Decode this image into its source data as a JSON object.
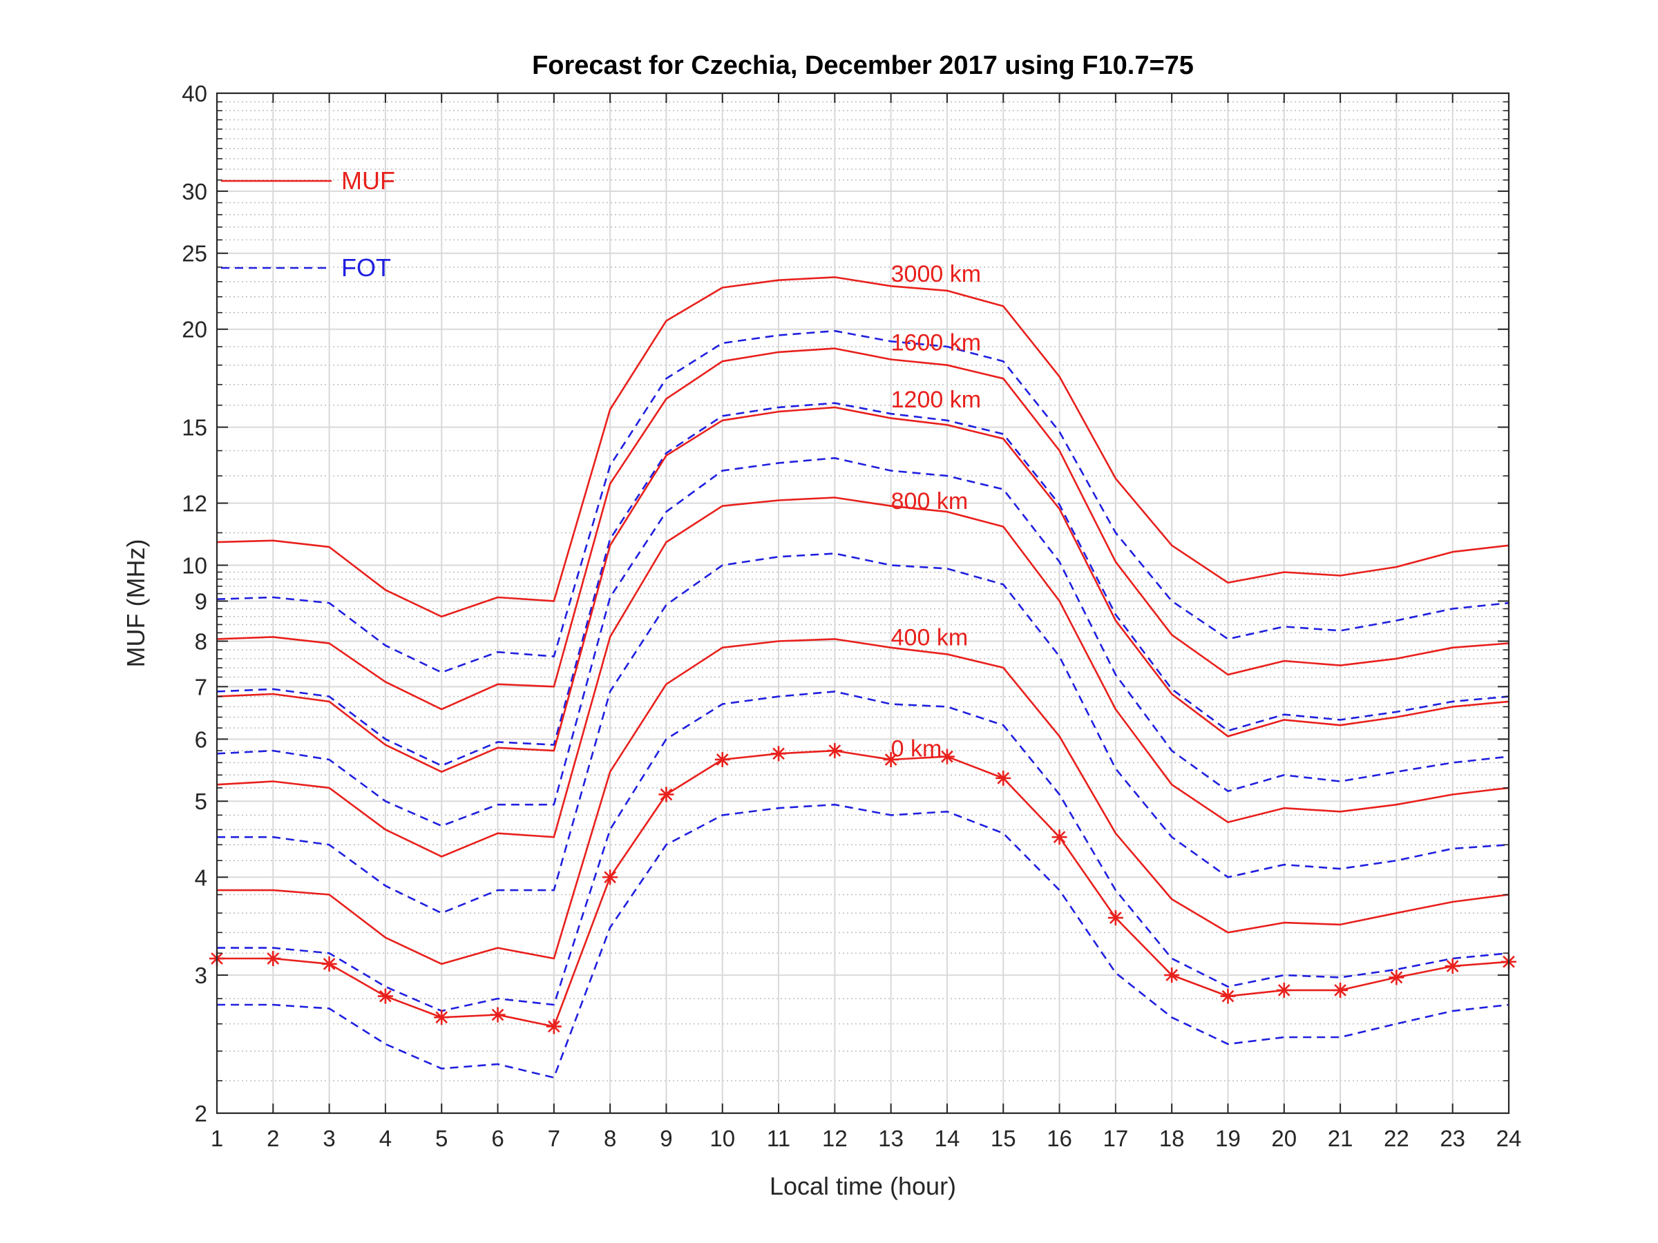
{
  "chart_data": {
    "type": "line",
    "title": "Forecast for Czechia, December 2017 using F10.7=75",
    "xlabel": "Local time (hour)",
    "ylabel": "MUF (MHz)",
    "xlim": [
      1,
      24
    ],
    "ylim": [
      2,
      40
    ],
    "yscale": "log",
    "x": [
      1,
      2,
      3,
      4,
      5,
      6,
      7,
      8,
      9,
      10,
      11,
      12,
      13,
      14,
      15,
      16,
      17,
      18,
      19,
      20,
      21,
      22,
      23,
      24
    ],
    "x_ticks": [
      "1",
      "2",
      "3",
      "4",
      "5",
      "6",
      "7",
      "8",
      "9",
      "10",
      "11",
      "12",
      "13",
      "14",
      "15",
      "16",
      "17",
      "18",
      "19",
      "20",
      "21",
      "22",
      "23",
      "24"
    ],
    "y_ticks": [
      {
        "value": 2,
        "label": "2"
      },
      {
        "value": 3,
        "label": "3"
      },
      {
        "value": 4,
        "label": "4"
      },
      {
        "value": 5,
        "label": "5"
      },
      {
        "value": 6,
        "label": "6"
      },
      {
        "value": 7,
        "label": "7"
      },
      {
        "value": 8,
        "label": "8"
      },
      {
        "value": 9,
        "label": "9"
      },
      {
        "value": 10,
        "label": "10"
      },
      {
        "value": 12,
        "label": "12"
      },
      {
        "value": 15,
        "label": "15"
      },
      {
        "value": 20,
        "label": "20"
      },
      {
        "value": 25,
        "label": "25"
      },
      {
        "value": 30,
        "label": "30"
      },
      {
        "value": 40,
        "label": "40"
      }
    ],
    "grid": true,
    "legend": {
      "placement": "top-left",
      "entries": [
        {
          "label": "MUF",
          "style": "solid",
          "color": "#e8201c"
        },
        {
          "label": "FOT",
          "style": "dashed",
          "color": "#1f1fe0"
        }
      ]
    },
    "colors": {
      "muf": "#e8201c",
      "fot": "#1f1fe0"
    },
    "curve_labels": [
      {
        "text": "3000 km",
        "x": 13,
        "y": 23
      },
      {
        "text": "1600 km",
        "x": 13,
        "y": 18.8
      },
      {
        "text": "1200 km",
        "x": 13,
        "y": 15.9
      },
      {
        "text": "800 km",
        "x": 13,
        "y": 11.8
      },
      {
        "text": "400 km",
        "x": 13,
        "y": 7.9
      },
      {
        "text": "0 km",
        "x": 13,
        "y": 5.7
      }
    ],
    "series": [
      {
        "distance": "3000 km",
        "kind": "MUF",
        "markers": false,
        "values": [
          10.7,
          10.75,
          10.55,
          9.3,
          8.6,
          9.1,
          9.0,
          15.8,
          20.5,
          22.6,
          23.1,
          23.3,
          22.7,
          22.4,
          21.4,
          17.4,
          12.9,
          10.6,
          9.5,
          9.8,
          9.7,
          9.95,
          10.4,
          10.6
        ]
      },
      {
        "distance": "3000 km",
        "kind": "FOT",
        "markers": false,
        "values": [
          9.05,
          9.1,
          8.95,
          7.9,
          7.3,
          7.75,
          7.65,
          13.4,
          17.3,
          19.2,
          19.65,
          19.9,
          19.3,
          19.0,
          18.2,
          14.8,
          11.0,
          9.0,
          8.05,
          8.35,
          8.25,
          8.5,
          8.8,
          8.95
        ]
      },
      {
        "distance": "1600 km",
        "kind": "MUF",
        "markers": false,
        "values": [
          8.05,
          8.1,
          7.95,
          7.1,
          6.55,
          7.05,
          7.0,
          12.7,
          16.3,
          18.2,
          18.7,
          18.9,
          18.3,
          18.0,
          17.3,
          14.0,
          10.1,
          8.15,
          7.25,
          7.55,
          7.45,
          7.6,
          7.85,
          7.95
        ]
      },
      {
        "distance": "1600 km",
        "kind": "FOT",
        "markers": false,
        "values": [
          6.9,
          6.95,
          6.8,
          6.0,
          5.55,
          5.95,
          5.9,
          10.8,
          13.9,
          15.5,
          15.9,
          16.1,
          15.6,
          15.3,
          14.7,
          11.95,
          8.65,
          6.95,
          6.15,
          6.45,
          6.35,
          6.5,
          6.7,
          6.8
        ]
      },
      {
        "distance": "1200 km",
        "kind": "MUF",
        "markers": false,
        "values": [
          6.8,
          6.85,
          6.7,
          5.9,
          5.45,
          5.85,
          5.8,
          10.6,
          13.8,
          15.3,
          15.7,
          15.9,
          15.4,
          15.1,
          14.5,
          11.8,
          8.5,
          6.85,
          6.05,
          6.35,
          6.25,
          6.4,
          6.6,
          6.7
        ]
      },
      {
        "distance": "800 km",
        "kind": "FOT",
        "markers": false,
        "values": [
          5.75,
          5.8,
          5.65,
          5.0,
          4.65,
          4.95,
          4.95,
          9.1,
          11.7,
          13.2,
          13.5,
          13.7,
          13.2,
          13.0,
          12.5,
          10.1,
          7.25,
          5.8,
          5.15,
          5.4,
          5.3,
          5.45,
          5.6,
          5.7
        ]
      },
      {
        "distance": "800 km",
        "kind": "MUF",
        "markers": false,
        "values": [
          5.25,
          5.3,
          5.2,
          4.6,
          4.25,
          4.55,
          4.5,
          8.1,
          10.7,
          11.9,
          12.1,
          12.2,
          11.9,
          11.7,
          11.2,
          9.0,
          6.55,
          5.25,
          4.7,
          4.9,
          4.85,
          4.95,
          5.1,
          5.2
        ]
      },
      {
        "distance": "400 km",
        "kind": "FOT",
        "markers": false,
        "values": [
          4.5,
          4.5,
          4.4,
          3.9,
          3.6,
          3.85,
          3.85,
          6.9,
          8.9,
          10.0,
          10.25,
          10.35,
          10.0,
          9.9,
          9.45,
          7.65,
          5.5,
          4.5,
          4.0,
          4.15,
          4.1,
          4.2,
          4.35,
          4.4
        ]
      },
      {
        "distance": "400 km",
        "kind": "MUF",
        "markers": false,
        "values": [
          3.85,
          3.85,
          3.8,
          3.35,
          3.1,
          3.25,
          3.15,
          5.45,
          7.05,
          7.85,
          8.0,
          8.05,
          7.85,
          7.7,
          7.4,
          6.05,
          4.55,
          3.75,
          3.4,
          3.5,
          3.48,
          3.6,
          3.72,
          3.8
        ]
      },
      {
        "distance": "0 km",
        "kind": "FOT",
        "markers": false,
        "values": [
          3.25,
          3.25,
          3.2,
          2.9,
          2.7,
          2.8,
          2.75,
          4.6,
          6.0,
          6.65,
          6.8,
          6.9,
          6.65,
          6.6,
          6.25,
          5.1,
          3.85,
          3.15,
          2.9,
          3.0,
          2.98,
          3.05,
          3.15,
          3.2
        ]
      },
      {
        "distance": "0 km",
        "kind": "MUF",
        "markers": true,
        "values": [
          3.15,
          3.15,
          3.1,
          2.82,
          2.65,
          2.67,
          2.58,
          4.0,
          5.1,
          5.65,
          5.75,
          5.8,
          5.65,
          5.7,
          5.35,
          4.5,
          3.55,
          3.0,
          2.82,
          2.87,
          2.87,
          2.98,
          3.08,
          3.12
        ]
      },
      {
        "distance": "0 km",
        "kind": "FOT",
        "markers": false,
        "values": [
          2.75,
          2.75,
          2.72,
          2.45,
          2.28,
          2.31,
          2.22,
          3.45,
          4.4,
          4.8,
          4.9,
          4.95,
          4.8,
          4.85,
          4.55,
          3.85,
          3.02,
          2.65,
          2.45,
          2.5,
          2.5,
          2.6,
          2.7,
          2.75
        ]
      }
    ]
  }
}
